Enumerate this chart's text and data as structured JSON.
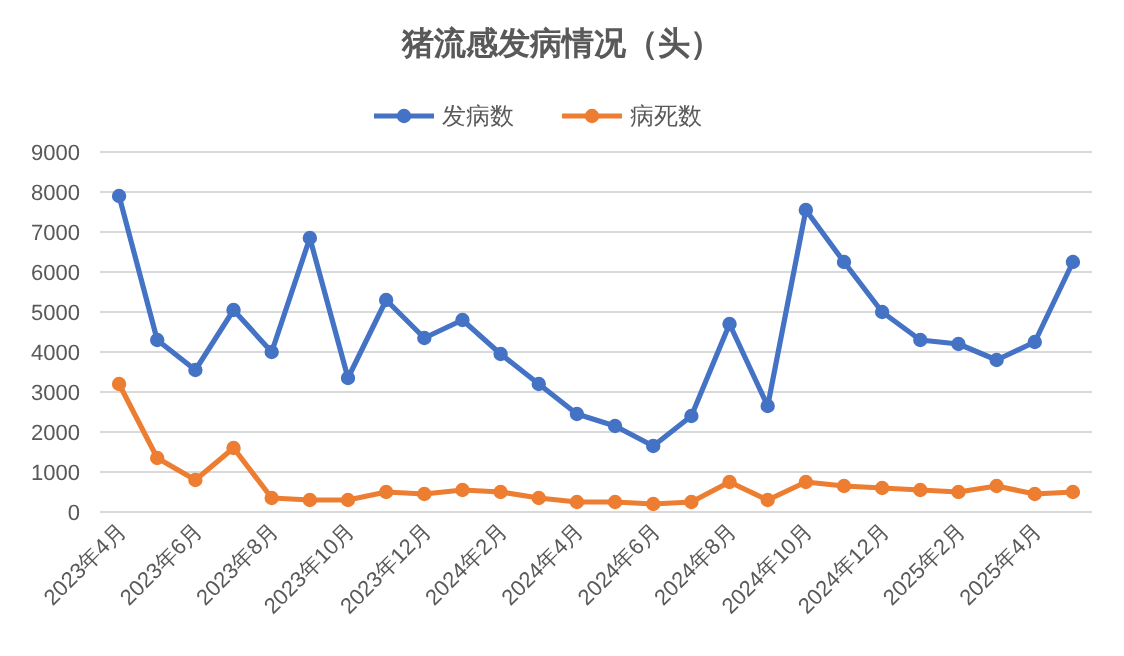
{
  "chart_data": {
    "type": "line",
    "title": "猪流感发病情况（头）",
    "categories": [
      "2023年4月",
      null,
      "2023年6月",
      null,
      "2023年8月",
      null,
      "2023年10月",
      null,
      "2023年12月",
      null,
      "2024年2月",
      null,
      "2024年4月",
      null,
      "2024年6月",
      null,
      "2024年8月",
      null,
      "2024年10月",
      null,
      "2024年12月",
      null,
      "2025年2月",
      null,
      "2025年4月",
      null
    ],
    "series": [
      {
        "name": "发病数",
        "color": "#4472c4",
        "values": [
          7900,
          4300,
          3550,
          5050,
          4000,
          6850,
          3350,
          5300,
          4350,
          4800,
          3950,
          3200,
          2450,
          2150,
          1650,
          2400,
          4700,
          2650,
          7550,
          6250,
          5000,
          4300,
          4200,
          3800,
          4250,
          6250
        ]
      },
      {
        "name": "病死数",
        "color": "#ed7d31",
        "values": [
          3200,
          1350,
          800,
          1600,
          350,
          300,
          300,
          500,
          450,
          550,
          500,
          350,
          250,
          250,
          200,
          250,
          750,
          300,
          750,
          650,
          600,
          550,
          500,
          650,
          450,
          500
        ]
      }
    ],
    "ylim": [
      0,
      9000
    ],
    "yticks": [
      0,
      1000,
      2000,
      3000,
      4000,
      5000,
      6000,
      7000,
      8000,
      9000
    ],
    "grid": "y",
    "legend": "top",
    "marker": "circle",
    "line_style": "solid"
  }
}
